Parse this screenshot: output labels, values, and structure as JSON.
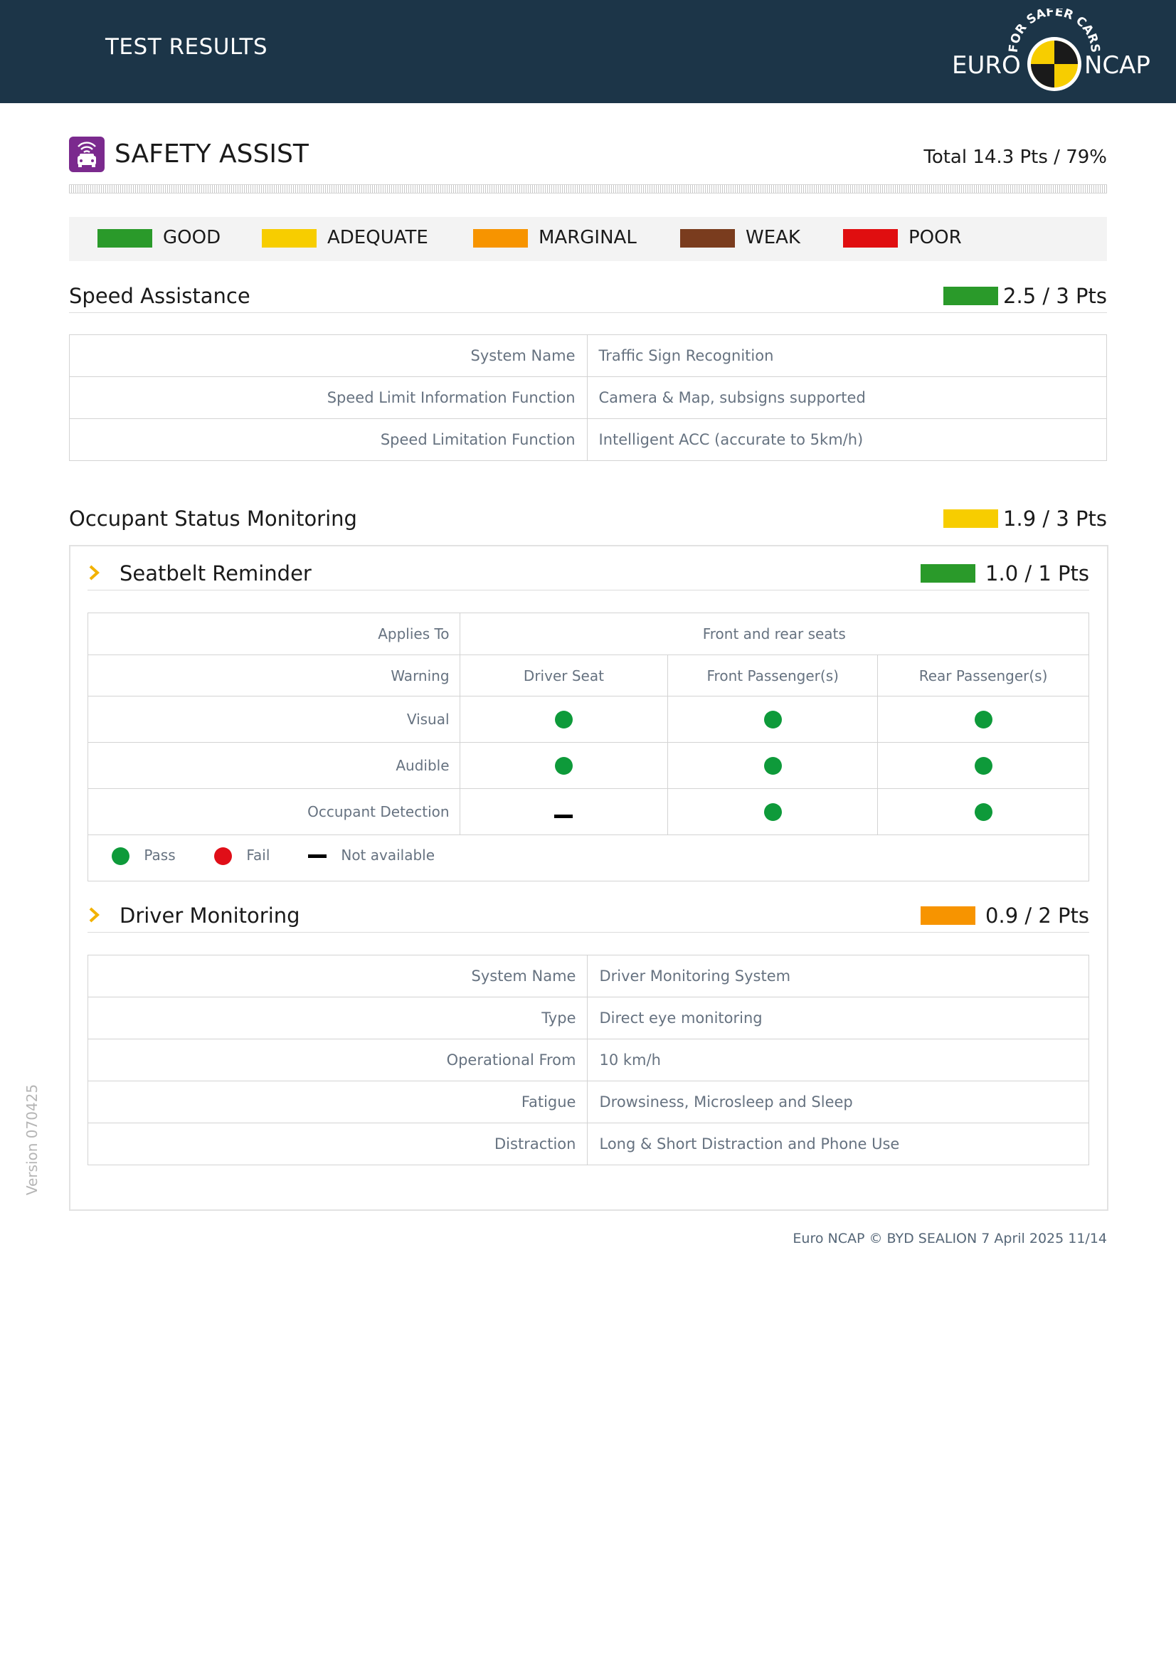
{
  "header": {
    "title": "TEST RESULTS"
  },
  "logo": {
    "left_word": "EURO",
    "right_word": "NCAP",
    "tagline": "FOR SAFER CARS"
  },
  "section": {
    "title": "SAFETY ASSIST",
    "total": "Total 14.3 Pts / 79%",
    "icon": "car-sensor-icon"
  },
  "legend": [
    {
      "label": "GOOD",
      "color": "#2a9a2a"
    },
    {
      "label": "ADEQUATE",
      "color": "#f7cd00"
    },
    {
      "label": "MARGINAL",
      "color": "#f79400"
    },
    {
      "label": "WEAK",
      "color": "#7a3c1e"
    },
    {
      "label": "POOR",
      "color": "#e00e10"
    }
  ],
  "speed_assistance": {
    "title": "Speed Assistance",
    "score": "2.5 / 3 Pts",
    "color": "#2a9a2a",
    "rows": [
      {
        "key": "System Name",
        "value": "Traffic Sign Recognition"
      },
      {
        "key": "Speed Limit Information Function",
        "value": "Camera & Map, subsigns supported"
      },
      {
        "key": "Speed Limitation Function",
        "value": "Intelligent ACC (accurate to 5km/h)"
      }
    ]
  },
  "occupant_status": {
    "title": "Occupant Status Monitoring",
    "score": "1.9 / 3 Pts",
    "color": "#f7cd00"
  },
  "seatbelt": {
    "title": "Seatbelt Reminder",
    "score": "1.0 / 1 Pts",
    "color": "#2a9a2a",
    "applies_to_label": "Applies To",
    "applies_to_value": "Front and rear seats",
    "warning_label": "Warning",
    "columns": [
      "Driver Seat",
      "Front Passenger(s)",
      "Rear Passenger(s)"
    ],
    "rows": [
      {
        "label": "Visual",
        "values": [
          "pass",
          "pass",
          "pass"
        ]
      },
      {
        "label": "Audible",
        "values": [
          "pass",
          "pass",
          "pass"
        ]
      },
      {
        "label": "Occupant Detection",
        "values": [
          "na",
          "pass",
          "pass"
        ]
      }
    ],
    "legend": {
      "pass": "Pass",
      "fail": "Fail",
      "na": "Not available"
    },
    "pass_color": "#0e9a3a",
    "fail_color": "#e00e18"
  },
  "driver_monitoring": {
    "title": "Driver Monitoring",
    "score": "0.9 / 2 Pts",
    "color": "#f79400",
    "rows": [
      {
        "key": "System Name",
        "value": "Driver Monitoring System"
      },
      {
        "key": "Type",
        "value": "Direct eye monitoring"
      },
      {
        "key": "Operational From",
        "value": "10 km/h"
      },
      {
        "key": "Fatigue",
        "value": "Drowsiness, Microsleep and Sleep"
      },
      {
        "key": "Distraction",
        "value": "Long & Short Distraction and Phone Use"
      }
    ]
  },
  "footer": {
    "text": "Euro NCAP © BYD SEALION 7 April 2025 11/14"
  },
  "version": {
    "text": "Version 070425"
  },
  "accent_chevron": "#f2b200"
}
